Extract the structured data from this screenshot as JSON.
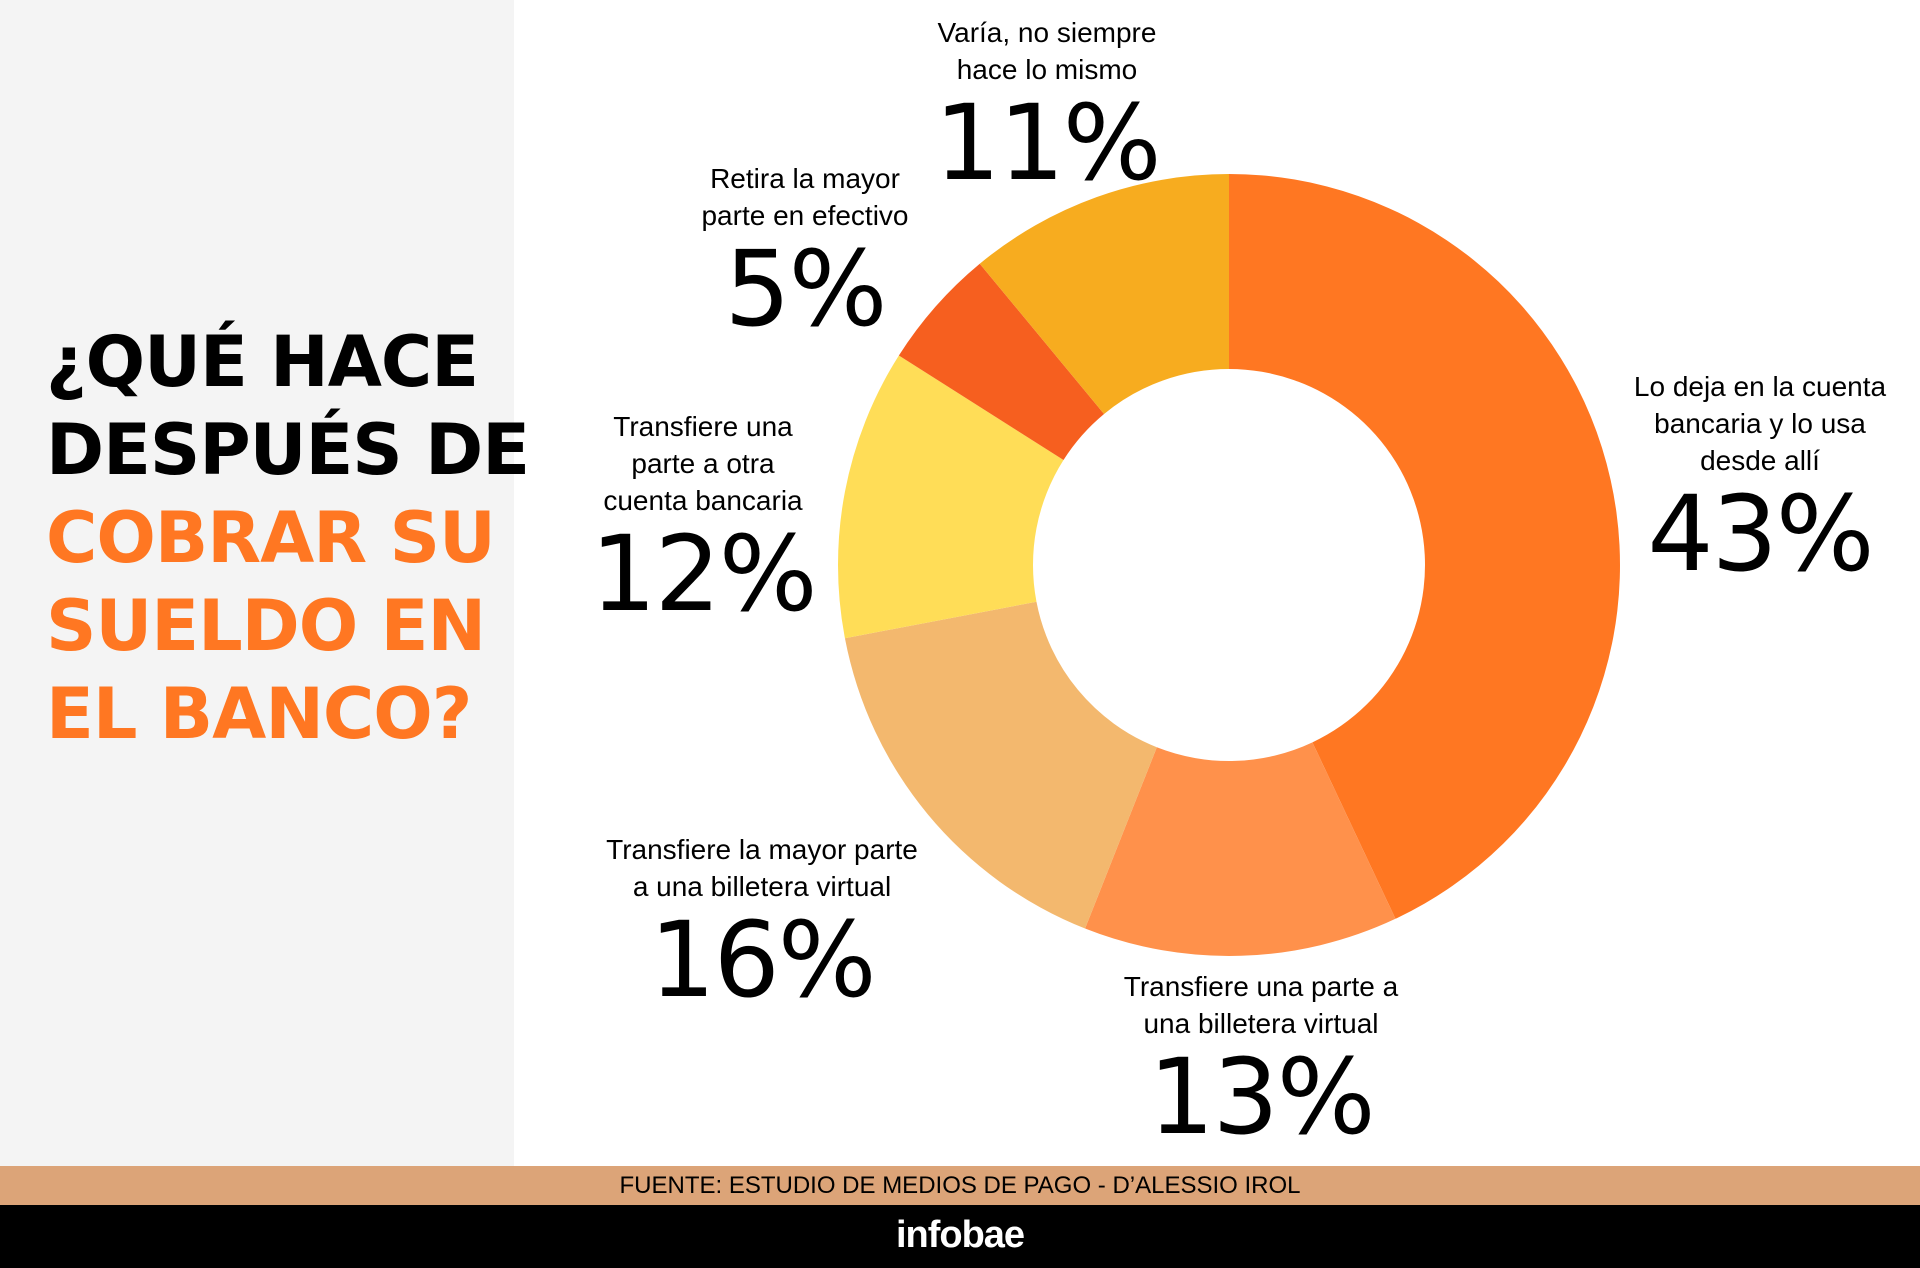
{
  "title": {
    "line1": "¿QUÉ HACE",
    "line2": "DESPUÉS DE",
    "line3": "COBRAR SU",
    "line4": "SUELDO EN",
    "line5": "EL BANCO?"
  },
  "colors": {
    "title_dark": "#000000",
    "title_accent": "#FF7722",
    "left_panel": "#F4F4F4",
    "source_bar": "#DCA478",
    "brand_bar": "#000000"
  },
  "chart_data": {
    "type": "pie",
    "variant": "donut",
    "start": "top, clockwise",
    "slices": [
      {
        "label_lines": [
          "Lo deja en la cuenta",
          "bancaria y lo usa",
          "desde allí"
        ],
        "value": 43,
        "display": "43%",
        "color": "#FF7722"
      },
      {
        "label_lines": [
          "Transfiere una parte a",
          "una billetera virtual"
        ],
        "value": 13,
        "display": "13%",
        "color": "#FF914B"
      },
      {
        "label_lines": [
          "Transfiere la mayor parte",
          "a una billetera virtual"
        ],
        "value": 16,
        "display": "16%",
        "color": "#F3B86E"
      },
      {
        "label_lines": [
          "Transfiere una",
          "parte a otra",
          "cuenta bancaria"
        ],
        "value": 12,
        "display": "12%",
        "color": "#FFDD57"
      },
      {
        "label_lines": [
          "Retira la mayor",
          "parte en efectivo"
        ],
        "value": 5,
        "display": "5%",
        "color": "#F65F1F"
      },
      {
        "label_lines": [
          "Varía, no siempre",
          "hace lo mismo"
        ],
        "value": 11,
        "display": "11%",
        "color": "#F7AC1F"
      }
    ]
  },
  "source": "FUENTE: ESTUDIO DE MEDIOS DE PAGO - D’ALESSIO IROL",
  "brand": "infobae"
}
